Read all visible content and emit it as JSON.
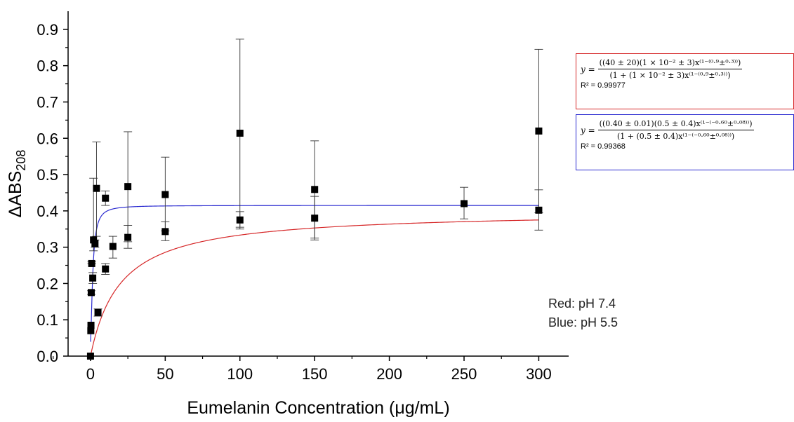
{
  "chart_data": {
    "type": "scatter",
    "title": "",
    "xlabel": "Eumelanin Concentration (μg/mL)",
    "ylabel_main": "ΔABS",
    "ylabel_sub": "208",
    "xlim": [
      -15,
      320
    ],
    "ylim": [
      0,
      0.95
    ],
    "x_ticks": [
      0,
      50,
      100,
      150,
      200,
      250,
      300
    ],
    "x_tick_labels": [
      "0",
      "50",
      "100",
      "150",
      "200",
      "250",
      "300"
    ],
    "y_ticks": [
      0,
      0.1,
      0.2,
      0.3,
      0.4,
      0.5,
      0.6,
      0.7,
      0.8,
      0.9
    ],
    "y_tick_labels": [
      "0.0",
      "0.1",
      "0.2",
      "0.3",
      "0.4",
      "0.5",
      "0.6",
      "0.7",
      "0.8",
      "0.9"
    ],
    "grid": false,
    "points": [
      {
        "x": 0,
        "y": 0.0,
        "lo": 0.0,
        "hi": 0.0
      },
      {
        "x": 0.2,
        "y": 0.07,
        "lo": 0.07,
        "hi": 0.07
      },
      {
        "x": 0.3,
        "y": 0.085,
        "lo": 0.085,
        "hi": 0.085
      },
      {
        "x": 0.5,
        "y": 0.175,
        "lo": 0.17,
        "hi": 0.18
      },
      {
        "x": 0.8,
        "y": 0.255,
        "lo": 0.255,
        "hi": 0.26
      },
      {
        "x": 1.5,
        "y": 0.215,
        "lo": 0.2,
        "hi": 0.23
      },
      {
        "x": 2,
        "y": 0.32,
        "lo": 0.29,
        "hi": 0.49
      },
      {
        "x": 3,
        "y": 0.31,
        "lo": 0.3,
        "hi": 0.32
      },
      {
        "x": 4,
        "y": 0.462,
        "lo": 0.33,
        "hi": 0.59
      },
      {
        "x": 5,
        "y": 0.12,
        "lo": 0.11,
        "hi": 0.13
      },
      {
        "x": 10,
        "y": 0.435,
        "lo": 0.415,
        "hi": 0.455
      },
      {
        "x": 10,
        "y": 0.24,
        "lo": 0.225,
        "hi": 0.255
      },
      {
        "x": 15,
        "y": 0.302,
        "lo": 0.27,
        "hi": 0.33
      },
      {
        "x": 25,
        "y": 0.467,
        "lo": 0.315,
        "hi": 0.618
      },
      {
        "x": 25,
        "y": 0.327,
        "lo": 0.297,
        "hi": 0.36
      },
      {
        "x": 50,
        "y": 0.445,
        "lo": 0.345,
        "hi": 0.548
      },
      {
        "x": 50,
        "y": 0.343,
        "lo": 0.318,
        "hi": 0.37
      },
      {
        "x": 100,
        "y": 0.614,
        "lo": 0.355,
        "hi": 0.873
      },
      {
        "x": 100,
        "y": 0.375,
        "lo": 0.35,
        "hi": 0.398
      },
      {
        "x": 150,
        "y": 0.459,
        "lo": 0.325,
        "hi": 0.593
      },
      {
        "x": 150,
        "y": 0.38,
        "lo": 0.32,
        "hi": 0.44
      },
      {
        "x": 250,
        "y": 0.42,
        "lo": 0.378,
        "hi": 0.465
      },
      {
        "x": 300,
        "y": 0.62,
        "lo": 0.395,
        "hi": 0.845
      },
      {
        "x": 300,
        "y": 0.402,
        "lo": 0.347,
        "hi": 0.458
      }
    ],
    "fits": [
      {
        "label": "red",
        "color": "#d62728",
        "a": 0.4,
        "b": 0.05,
        "n": 1.0,
        "c": 0.0
      },
      {
        "label": "blue",
        "color": "#2a2ad0",
        "a": 0.415,
        "b": 0.5,
        "n": 1.6,
        "c": 0.04
      }
    ],
    "equations": {
      "red": {
        "y": "y =",
        "numerator": "((40 ± 20)(1 × 10⁻² ± 3)x⁽¹⁻⁽⁰·⁹±⁰·³⁾⁾)",
        "denominator": "(1 + (1 × 10⁻² ± 3)x⁽¹⁻⁽⁰·⁹±⁰·³⁾⁾)",
        "r2": "R² = 0.99977"
      },
      "blue": {
        "y": "y =",
        "numerator": "((0.40 ± 0.01)(0.5 ± 0.4)x⁽¹⁻⁽⁻⁰·⁶⁰±⁰·⁰⁸⁾⁾)",
        "denominator": "(1 + (0.5 ± 0.4)x⁽¹⁻⁽⁻⁰·⁶⁰±⁰·⁰⁸⁾⁾)",
        "r2": "R² = 0.99368"
      }
    },
    "notes": {
      "red": "Red: pH 7.4",
      "blue": "Blue: pH 5.5"
    }
  }
}
